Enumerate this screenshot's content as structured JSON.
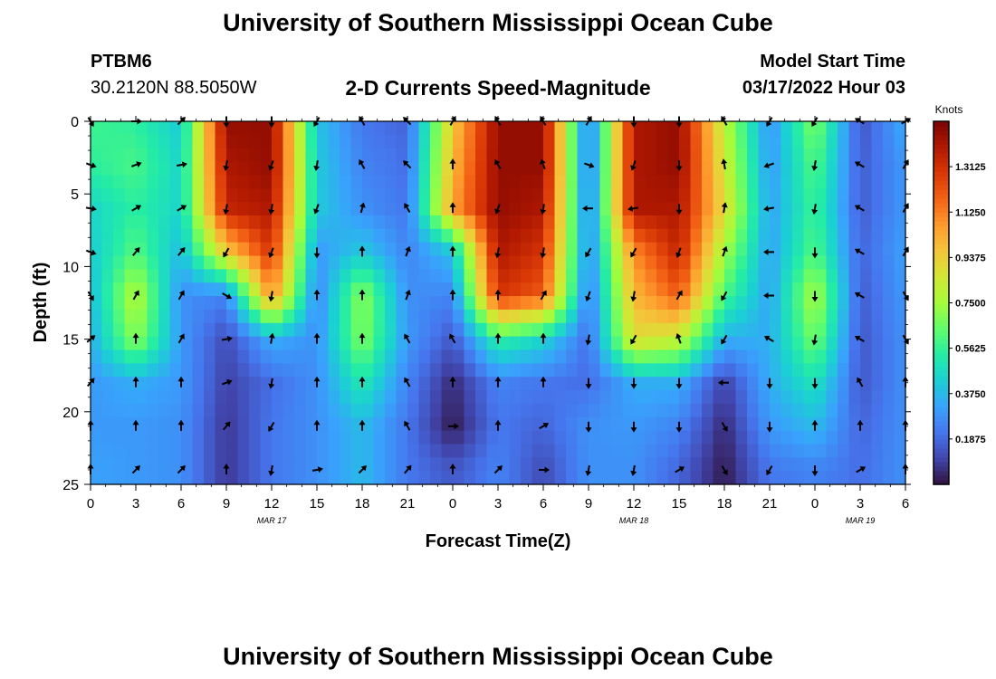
{
  "header": {
    "title": "University of Southern Mississippi Ocean Cube",
    "station_id": "PTBM6",
    "station_coords": "30.2120N  88.5050W",
    "subtitle": "2-D Currents Speed-Magnitude",
    "model_start_label": "Model Start Time",
    "model_start_value": "03/17/2022 Hour 03"
  },
  "footer": {
    "title": "University of Southern Mississippi Ocean Cube"
  },
  "colors": {
    "scale": [
      "#30123b",
      "#4145ab",
      "#4675ed",
      "#39a2fc",
      "#1bcfd4",
      "#24eca6",
      "#61fc6c",
      "#a4fc3b",
      "#d1e834",
      "#f3c63a",
      "#fe9b2d",
      "#f36315",
      "#d93806",
      "#b11901",
      "#7a0402"
    ],
    "arrow": "#000000",
    "frame": "#000000"
  },
  "chart_data": {
    "type": "heatmap",
    "title": "2-D Currents Speed-Magnitude",
    "xlabel": "Forecast Time(Z)",
    "ylabel": "Depth (ft)",
    "x_ticks": [
      0,
      3,
      6,
      9,
      12,
      15,
      18,
      21,
      24,
      27,
      30,
      33,
      36,
      39,
      42,
      45,
      48,
      51,
      54
    ],
    "x_tick_labels": [
      "0",
      "3",
      "6",
      "9",
      "12",
      "15",
      "18",
      "21",
      "0",
      "3",
      "6",
      "9",
      "12",
      "15",
      "18",
      "21",
      "0",
      "3",
      "6"
    ],
    "day_labels": [
      {
        "text": "MAR 17",
        "hour": 12
      },
      {
        "text": "MAR 18",
        "hour": 36
      },
      {
        "text": "MAR 19",
        "hour": 51
      }
    ],
    "x_range": [
      0,
      54
    ],
    "y_range": [
      0,
      25
    ],
    "y_ticks": [
      0,
      5,
      10,
      15,
      20,
      25
    ],
    "y_tick_labels": [
      "0",
      "5",
      "10",
      "15",
      "20",
      "25"
    ],
    "colorbar": {
      "label": "Knots",
      "min": 0,
      "max": 1.5,
      "ticks": [
        "1.3125",
        "1.1250",
        "0.9375",
        "0.7500",
        "0.5625",
        "0.3750",
        "0.1875"
      ],
      "tick_values": [
        1.3125,
        1.125,
        0.9375,
        0.75,
        0.5625,
        0.375,
        0.1875
      ]
    },
    "depths": [
      0,
      3,
      6,
      9,
      12,
      15,
      18,
      21,
      24
    ],
    "hours": [
      0,
      3,
      6,
      9,
      12,
      15,
      18,
      21,
      24,
      27,
      30,
      33,
      36,
      39,
      42,
      45,
      48,
      51,
      54
    ],
    "speed": [
      [
        0.58,
        0.55,
        0.42,
        1.45,
        1.45,
        0.4,
        0.22,
        0.18,
        0.95,
        1.45,
        1.45,
        0.2,
        1.4,
        1.45,
        0.8,
        0.28,
        0.7,
        0.14,
        0.35
      ],
      [
        0.55,
        0.6,
        0.45,
        1.4,
        1.45,
        0.42,
        0.25,
        0.2,
        1.0,
        1.45,
        1.45,
        0.2,
        1.4,
        1.45,
        0.85,
        0.3,
        0.62,
        0.16,
        0.3
      ],
      [
        0.45,
        0.55,
        0.45,
        1.35,
        1.4,
        0.42,
        0.28,
        0.22,
        1.05,
        1.45,
        1.4,
        0.22,
        1.4,
        1.4,
        0.9,
        0.32,
        0.58,
        0.16,
        0.3
      ],
      [
        0.42,
        0.62,
        0.38,
        0.95,
        1.3,
        0.3,
        0.42,
        0.25,
        0.4,
        1.4,
        1.3,
        0.25,
        1.1,
        1.35,
        0.75,
        0.32,
        0.62,
        0.18,
        0.32
      ],
      [
        0.38,
        0.8,
        0.28,
        0.25,
        1.1,
        0.25,
        0.72,
        0.28,
        0.25,
        1.3,
        1.2,
        0.22,
        1.0,
        1.2,
        0.6,
        0.32,
        0.78,
        0.16,
        0.3
      ],
      [
        0.35,
        0.72,
        0.3,
        0.12,
        0.35,
        0.28,
        0.7,
        0.3,
        0.15,
        0.55,
        0.45,
        0.2,
        0.9,
        0.82,
        0.35,
        0.35,
        0.68,
        0.15,
        0.28
      ],
      [
        0.3,
        0.35,
        0.3,
        0.1,
        0.2,
        0.28,
        0.52,
        0.25,
        0.05,
        0.25,
        0.22,
        0.2,
        0.35,
        0.35,
        0.1,
        0.35,
        0.5,
        0.15,
        0.28
      ],
      [
        0.3,
        0.3,
        0.28,
        0.08,
        0.22,
        0.28,
        0.38,
        0.22,
        0.02,
        0.22,
        0.18,
        0.28,
        0.3,
        0.25,
        0.05,
        0.3,
        0.38,
        0.18,
        0.28
      ],
      [
        0.32,
        0.3,
        0.28,
        0.08,
        0.22,
        0.28,
        0.38,
        0.22,
        0.15,
        0.25,
        0.12,
        0.28,
        0.28,
        0.18,
        0.02,
        0.22,
        0.25,
        0.2,
        0.28
      ]
    ],
    "direction_deg": [
      [
        150,
        90,
        45,
        180,
        180,
        210,
        330,
        315,
        30,
        330,
        330,
        30,
        180,
        180,
        330,
        210,
        210,
        300,
        60
      ],
      [
        110,
        70,
        80,
        190,
        200,
        190,
        330,
        315,
        360,
        330,
        340,
        110,
        200,
        180,
        350,
        250,
        190,
        300,
        30
      ],
      [
        100,
        60,
        60,
        190,
        190,
        200,
        15,
        330,
        360,
        200,
        190,
        270,
        260,
        180,
        10,
        260,
        190,
        300,
        30
      ],
      [
        110,
        40,
        40,
        210,
        200,
        180,
        360,
        20,
        360,
        190,
        190,
        210,
        210,
        200,
        20,
        270,
        180,
        300,
        30
      ],
      [
        150,
        30,
        30,
        120,
        190,
        360,
        360,
        20,
        360,
        360,
        30,
        200,
        190,
        30,
        210,
        270,
        180,
        300,
        150
      ],
      [
        50,
        360,
        30,
        80,
        10,
        360,
        360,
        330,
        330,
        360,
        360,
        190,
        210,
        340,
        210,
        300,
        190,
        300,
        150
      ],
      [
        40,
        360,
        360,
        70,
        190,
        360,
        360,
        330,
        360,
        360,
        360,
        180,
        180,
        180,
        270,
        180,
        180,
        330,
        360
      ],
      [
        360,
        360,
        360,
        40,
        210,
        360,
        360,
        330,
        90,
        360,
        60,
        180,
        180,
        180,
        150,
        180,
        360,
        360,
        360
      ],
      [
        360,
        45,
        45,
        360,
        190,
        80,
        45,
        40,
        360,
        45,
        90,
        190,
        190,
        60,
        150,
        210,
        180,
        60,
        360
      ]
    ]
  }
}
